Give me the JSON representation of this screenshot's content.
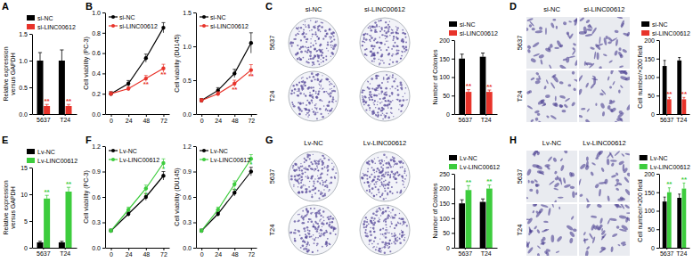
{
  "chart_data": [
    {
      "panel": "A",
      "type": "bar",
      "y_label": [
        "Relative expression",
        "versus GAPDH"
      ],
      "categories": [
        "5637",
        "T24"
      ],
      "series": [
        {
          "name": "si-NC",
          "color": "#000000",
          "values": [
            1.0,
            1.0
          ],
          "errors": [
            0.15,
            0.2
          ]
        },
        {
          "name": "si-LINC00612",
          "color": "#e8332a",
          "values": [
            0.15,
            0.15
          ],
          "errors": [
            0.03,
            0.03
          ],
          "annotations": [
            "**",
            "**"
          ]
        }
      ],
      "ylim": [
        0,
        1.5
      ],
      "yticks": [
        {
          "value": 0,
          "label": "0.0"
        },
        0.5,
        {
          "value": 1,
          "label": "1.0"
        },
        1.5
      ],
      "legend": "top"
    },
    {
      "panel": "B",
      "type": "line",
      "y_label": "Cell viability (PC-3)",
      "x": [
        0,
        24,
        48,
        72
      ],
      "xlim": [
        -8,
        80
      ],
      "xticks": [
        0,
        24,
        48,
        72
      ],
      "ylim": [
        0,
        1
      ],
      "yticks": [
        {
          "value": 0,
          "label": "0.0"
        },
        0.2,
        0.4,
        0.6,
        0.8,
        {
          "value": 1,
          "label": "1.0"
        }
      ],
      "series": [
        {
          "name": "si-NC",
          "color": "#000000",
          "marker": "circle",
          "values": [
            0.2,
            0.3,
            0.55,
            0.85
          ],
          "errors": [
            0.02,
            0.03,
            0.04,
            0.05
          ]
        },
        {
          "name": "si-LINC00612",
          "color": "#e8332a",
          "marker": "circle",
          "values": [
            0.2,
            0.25,
            0.35,
            0.45
          ],
          "errors": [
            0.02,
            0.02,
            0.03,
            0.04
          ],
          "annotations": [
            null,
            null,
            "**",
            "**"
          ]
        }
      ],
      "legend": "top-left"
    },
    {
      "type": "line",
      "y_label": "Cell viability (DU145)",
      "x": [
        0,
        24,
        48,
        72
      ],
      "xlim": [
        -8,
        80
      ],
      "xticks": [
        0,
        24,
        48,
        72
      ],
      "ylim": [
        0,
        1.5
      ],
      "yticks": [
        {
          "value": 0,
          "label": "0.0"
        },
        0.5,
        {
          "value": 1,
          "label": "1.0"
        },
        1.5
      ],
      "series": [
        {
          "name": "si-NC",
          "color": "#000000",
          "marker": "circle",
          "values": [
            0.2,
            0.35,
            0.6,
            1.05
          ],
          "errors": [
            0.03,
            0.04,
            0.06,
            0.15
          ]
        },
        {
          "name": "si-LINC00612",
          "color": "#e8332a",
          "marker": "circle",
          "values": [
            0.2,
            0.3,
            0.45,
            0.65
          ],
          "errors": [
            0.03,
            0.03,
            0.05,
            0.08
          ],
          "annotations": [
            null,
            null,
            "**",
            "**"
          ]
        }
      ],
      "legend": "top-left"
    },
    {
      "panel": "C",
      "type": "plates",
      "columns": [
        "si-NC",
        "si-LINC00612"
      ],
      "rows": [
        "5637",
        "T24"
      ]
    },
    {
      "type": "bar",
      "y_label": "Number of Colonies",
      "categories": [
        "5637",
        "T24"
      ],
      "series": [
        {
          "name": "si-NC",
          "color": "#000000",
          "values": [
            150,
            155
          ],
          "errors": [
            12,
            10
          ]
        },
        {
          "name": "si-LINC00612",
          "color": "#e8332a",
          "values": [
            60,
            60
          ],
          "errors": [
            6,
            5
          ],
          "annotations": [
            "**",
            "**"
          ]
        }
      ],
      "ylim": [
        0,
        200
      ],
      "yticks": [
        0,
        50,
        100,
        150,
        200
      ],
      "legend": "top"
    },
    {
      "panel": "D",
      "type": "micrographs",
      "columns": [
        "si-NC",
        "si-LINC00612"
      ],
      "rows": [
        "5637",
        "T24"
      ]
    },
    {
      "type": "bar",
      "y_label": "Cell number/×200 field",
      "categories": [
        "5637",
        "T24"
      ],
      "series": [
        {
          "name": "si-NC",
          "color": "#000000",
          "values": [
            130,
            145
          ],
          "errors": [
            15,
            8
          ]
        },
        {
          "name": "si-LINC00612",
          "color": "#e8332a",
          "values": [
            40,
            40
          ],
          "errors": [
            5,
            5
          ],
          "annotations": [
            "**",
            "**"
          ]
        }
      ],
      "ylim": [
        0,
        200
      ],
      "yticks": [
        0,
        50,
        100,
        150,
        200
      ],
      "legend": "top"
    },
    {
      "panel": "E",
      "type": "bar",
      "y_label": [
        "Relative expression",
        "versus GAPDH"
      ],
      "categories": [
        "5637",
        "T24"
      ],
      "series": [
        {
          "name": "Lv-NC",
          "color": "#000000",
          "values": [
            1.0,
            1.0
          ],
          "errors": [
            0.2,
            0.2
          ]
        },
        {
          "name": "Lv-LINC00612",
          "color": "#3dcc3d",
          "values": [
            9.2,
            10.5
          ],
          "errors": [
            0.6,
            0.8
          ],
          "annotations": [
            "**",
            "**"
          ]
        }
      ],
      "ylim": [
        0,
        15
      ],
      "yticks": [
        0,
        5,
        10,
        15
      ],
      "legend": "top"
    },
    {
      "panel": "F",
      "type": "line",
      "y_label": "Cell viability (PC-3)",
      "x": [
        0,
        24,
        48,
        72
      ],
      "xlim": [
        -8,
        80
      ],
      "xticks": [
        0,
        24,
        48,
        72
      ],
      "ylim": [
        0,
        1.2
      ],
      "yticks": [
        {
          "value": 0,
          "label": "0.0"
        },
        0.3,
        0.6,
        0.9,
        1.2
      ],
      "series": [
        {
          "name": "Lv-NC",
          "color": "#000000",
          "marker": "circle",
          "values": [
            0.2,
            0.4,
            0.6,
            0.85
          ],
          "errors": [
            0.02,
            0.03,
            0.04,
            0.05
          ]
        },
        {
          "name": "Lv-LINC00612",
          "color": "#3dcc3d",
          "marker": "circle",
          "values": [
            0.2,
            0.45,
            0.7,
            1.0
          ],
          "errors": [
            0.02,
            0.03,
            0.04,
            0.05
          ],
          "annotations": [
            null,
            null,
            "*",
            "*"
          ]
        }
      ],
      "legend": "top-left"
    },
    {
      "type": "line",
      "y_label": "Cell viability (DU145)",
      "x": [
        0,
        24,
        48,
        72
      ],
      "xlim": [
        -8,
        80
      ],
      "xticks": [
        0,
        24,
        48,
        72
      ],
      "ylim": [
        0,
        1.2
      ],
      "yticks": [
        {
          "value": 0,
          "label": "0.0"
        },
        0.3,
        0.6,
        0.9,
        1.2
      ],
      "series": [
        {
          "name": "Lv-NC",
          "color": "#000000",
          "marker": "circle",
          "values": [
            0.2,
            0.4,
            0.65,
            0.9
          ],
          "errors": [
            0.02,
            0.03,
            0.04,
            0.05
          ]
        },
        {
          "name": "Lv-LINC00612",
          "color": "#3dcc3d",
          "marker": "circle",
          "values": [
            0.2,
            0.45,
            0.75,
            1.05
          ],
          "errors": [
            0.02,
            0.03,
            0.04,
            0.05
          ],
          "annotations": [
            null,
            null,
            "*",
            "*"
          ]
        }
      ],
      "legend": "top-left"
    },
    {
      "panel": "G",
      "type": "plates",
      "columns": [
        "Lv-NC",
        "Lv-LINC00612"
      ],
      "rows": [
        "5637",
        "T24"
      ]
    },
    {
      "type": "bar",
      "y_label": "Number of Colonies",
      "categories": [
        "5637",
        "T24"
      ],
      "series": [
        {
          "name": "Lv-NC",
          "color": "#000000",
          "values": [
            150,
            155
          ],
          "errors": [
            12,
            10
          ]
        },
        {
          "name": "Lv-LINC00612",
          "color": "#3dcc3d",
          "values": [
            195,
            200
          ],
          "errors": [
            15,
            12
          ],
          "annotations": [
            "**",
            "**"
          ]
        }
      ],
      "ylim": [
        0,
        250
      ],
      "yticks": [
        0,
        50,
        100,
        150,
        200,
        250
      ],
      "legend": "top"
    },
    {
      "panel": "H",
      "type": "micrographs",
      "columns": [
        "Lv-NC",
        "Lv-LINC00612"
      ],
      "rows": [
        "5637",
        "T24"
      ]
    },
    {
      "type": "bar",
      "y_label": "Cell number/×200 field",
      "categories": [
        "5637",
        "T24"
      ],
      "series": [
        {
          "name": "Lv-NC",
          "color": "#000000",
          "values": [
            125,
            135
          ],
          "errors": [
            12,
            10
          ]
        },
        {
          "name": "Lv-LINC00612",
          "color": "#3dcc3d",
          "values": [
            150,
            160
          ],
          "errors": [
            12,
            15
          ],
          "annotations": [
            "**",
            "**"
          ]
        }
      ],
      "ylim": [
        0,
        200
      ],
      "yticks": [
        0,
        50,
        100,
        150,
        200
      ],
      "legend": "top"
    }
  ]
}
